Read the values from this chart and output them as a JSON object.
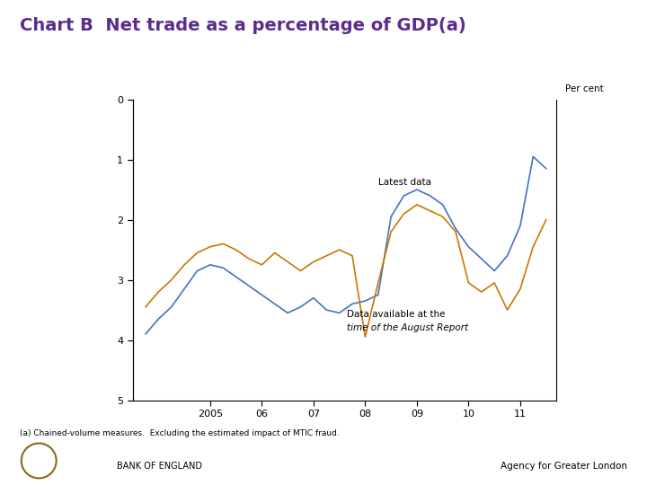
{
  "title": "Chart B  Net trade as a percentage of GDP(a)",
  "title_color": "#5B2C8D",
  "title_fontsize": 14,
  "ylabel_text": "Per cent",
  "footnote": "(a) Chained-volume measures.  Excluding the estimated impact of MTIC fraud.",
  "footer_right": "Agency for Greater London",
  "footer_left": "BANK OF ENGLAND",
  "ylim": [
    5,
    0
  ],
  "yticks": [
    0,
    1,
    2,
    3,
    4,
    5
  ],
  "xlabel_ticks": [
    "2005",
    "06",
    "07",
    "08",
    "09",
    "10",
    "11"
  ],
  "x_tick_positions": [
    2005,
    2006,
    2007,
    2008,
    2009,
    2010,
    2011
  ],
  "xlim": [
    2003.5,
    2011.7
  ],
  "annotation_latest": "Latest data",
  "annotation_august_line1": "Data available at the",
  "annotation_august_line2": "time of the August Report",
  "blue_line_color": "#4472C4",
  "orange_line_color": "#CC7700",
  "blue_x": [
    2003.75,
    2004.0,
    2004.25,
    2004.5,
    2004.75,
    2005.0,
    2005.25,
    2005.5,
    2005.75,
    2006.0,
    2006.25,
    2006.5,
    2006.75,
    2007.0,
    2007.25,
    2007.5,
    2007.75,
    2008.0,
    2008.25,
    2008.5,
    2008.75,
    2009.0,
    2009.25,
    2009.5,
    2009.75,
    2010.0,
    2010.25,
    2010.5,
    2010.75,
    2011.0,
    2011.25,
    2011.5
  ],
  "blue_y": [
    3.9,
    3.65,
    3.45,
    3.15,
    2.85,
    2.75,
    2.8,
    2.95,
    3.1,
    3.25,
    3.4,
    3.55,
    3.45,
    3.3,
    3.5,
    3.55,
    3.4,
    3.35,
    3.25,
    1.95,
    1.6,
    1.5,
    1.6,
    1.75,
    2.15,
    2.45,
    2.65,
    2.85,
    2.6,
    2.1,
    0.95,
    1.15
  ],
  "orange_x": [
    2003.75,
    2004.0,
    2004.25,
    2004.5,
    2004.75,
    2005.0,
    2005.25,
    2005.5,
    2005.75,
    2006.0,
    2006.25,
    2006.5,
    2006.75,
    2007.0,
    2007.25,
    2007.5,
    2007.75,
    2008.0,
    2008.25,
    2008.5,
    2008.75,
    2009.0,
    2009.25,
    2009.5,
    2009.75,
    2010.0,
    2010.25,
    2010.5,
    2010.75,
    2011.0,
    2011.25,
    2011.5
  ],
  "orange_y": [
    3.45,
    3.2,
    3.0,
    2.75,
    2.55,
    2.45,
    2.4,
    2.5,
    2.65,
    2.75,
    2.55,
    2.7,
    2.85,
    2.7,
    2.6,
    2.5,
    2.6,
    3.95,
    3.05,
    2.2,
    1.9,
    1.75,
    1.85,
    1.95,
    2.2,
    3.05,
    3.2,
    3.05,
    3.5,
    3.15,
    2.45,
    2.0
  ],
  "background_color": "#FFFFFF",
  "plot_bg_color": "#FFFFFF"
}
